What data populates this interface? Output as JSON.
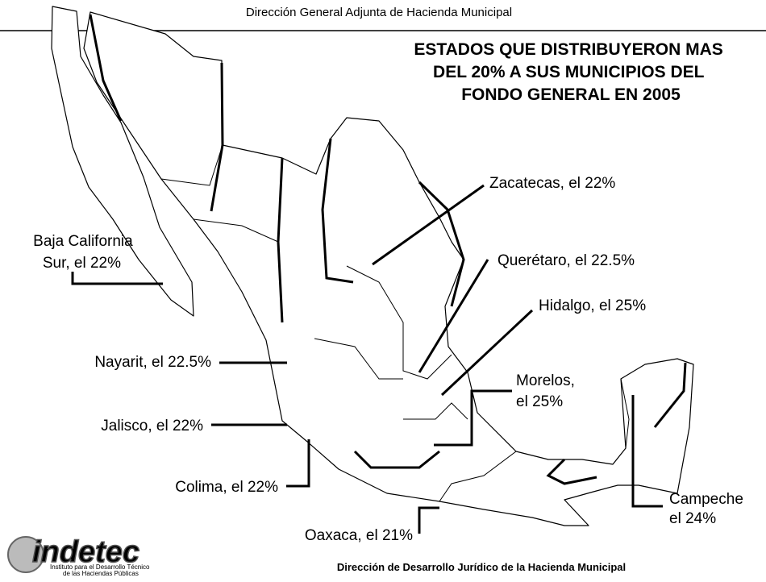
{
  "header": {
    "text": "Dirección General Adjunta de Hacienda Municipal"
  },
  "title": {
    "lines": [
      "ESTADOS QUE DISTRIBUYERON MAS",
      "DEL 20% A SUS MUNICIPIOS DEL",
      "FONDO GENERAL EN 2005"
    ]
  },
  "labels": {
    "zacatecas": "Zacatecas, el 22%",
    "queretaro": "Querétaro, el 22.5%",
    "hidalgo": "Hidalgo, el 25%",
    "morelos": [
      "Morelos,",
      "el 25%"
    ],
    "campeche": [
      "Campeche",
      "el 24%"
    ],
    "baja_california_sur": [
      "Baja California",
      "Sur, el 22%"
    ],
    "nayarit": "Nayarit, el 22.5%",
    "jalisco": "Jalisco, el 22%",
    "colima": "Colima, el 22%",
    "oaxaca": "Oaxaca, el 21%"
  },
  "footer": {
    "text": "Dirección de Desarrollo Jurídico de la Hacienda Municipal"
  },
  "logo": {
    "name": "indetec",
    "lines": [
      "Instituto para el Desarrollo Técnico",
      "de las Haciendas Públicas"
    ]
  }
}
